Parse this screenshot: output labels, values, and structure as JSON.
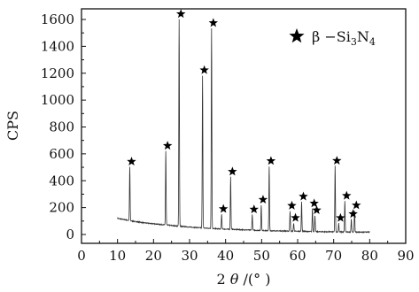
{
  "chart_data": {
    "type": "line",
    "xlabel_parts": [
      "2 ",
      "θ",
      " /(°  )"
    ],
    "ylabel": "CPS",
    "xlim": [
      0,
      90
    ],
    "ylim": [
      -50,
      1700
    ],
    "x_ticks": [
      0,
      10,
      20,
      30,
      40,
      50,
      60,
      70,
      80,
      90
    ],
    "y_ticks": [
      0,
      200,
      400,
      600,
      800,
      1000,
      1200,
      1400,
      1600
    ],
    "grid": false,
    "legend": {
      "placement": "top-right",
      "symbol": "star",
      "label_parts": [
        "β",
        " −Si",
        "3",
        "N",
        "4"
      ]
    },
    "baseline": [
      [
        10,
        120
      ],
      [
        12,
        110
      ],
      [
        14,
        100
      ],
      [
        16,
        92
      ],
      [
        18,
        85
      ],
      [
        20,
        80
      ],
      [
        22,
        74
      ],
      [
        24,
        70
      ],
      [
        26,
        64
      ],
      [
        28,
        60
      ],
      [
        30,
        55
      ],
      [
        32,
        52
      ],
      [
        34,
        48
      ],
      [
        36,
        45
      ],
      [
        38,
        42
      ],
      [
        40,
        40
      ],
      [
        42,
        38
      ],
      [
        44,
        36
      ],
      [
        46,
        34
      ],
      [
        48,
        32
      ],
      [
        50,
        30
      ],
      [
        52,
        28
      ],
      [
        54,
        27
      ],
      [
        56,
        26
      ],
      [
        58,
        25
      ],
      [
        60,
        24
      ],
      [
        62,
        23
      ],
      [
        64,
        22
      ],
      [
        66,
        21
      ],
      [
        68,
        20
      ],
      [
        70,
        20
      ],
      [
        72,
        19
      ],
      [
        74,
        19
      ],
      [
        76,
        18
      ],
      [
        78,
        18
      ],
      [
        80,
        18
      ]
    ],
    "peaks": [
      {
        "x": 13.4,
        "y": 400
      },
      {
        "x": 23.4,
        "y": 550
      },
      {
        "x": 27.1,
        "y": 1540
      },
      {
        "x": 33.6,
        "y": 1135
      },
      {
        "x": 36.1,
        "y": 1490
      },
      {
        "x": 38.9,
        "y": 110
      },
      {
        "x": 41.4,
        "y": 390
      },
      {
        "x": 47.4,
        "y": 115
      },
      {
        "x": 49.9,
        "y": 190
      },
      {
        "x": 52.1,
        "y": 480
      },
      {
        "x": 57.9,
        "y": 150
      },
      {
        "x": 58.9,
        "y": 60
      },
      {
        "x": 61.1,
        "y": 220
      },
      {
        "x": 64.1,
        "y": 170
      },
      {
        "x": 64.8,
        "y": 120
      },
      {
        "x": 70.4,
        "y": 490
      },
      {
        "x": 71.4,
        "y": 65
      },
      {
        "x": 73.1,
        "y": 230
      },
      {
        "x": 74.9,
        "y": 95
      },
      {
        "x": 75.8,
        "y": 160
      }
    ]
  }
}
